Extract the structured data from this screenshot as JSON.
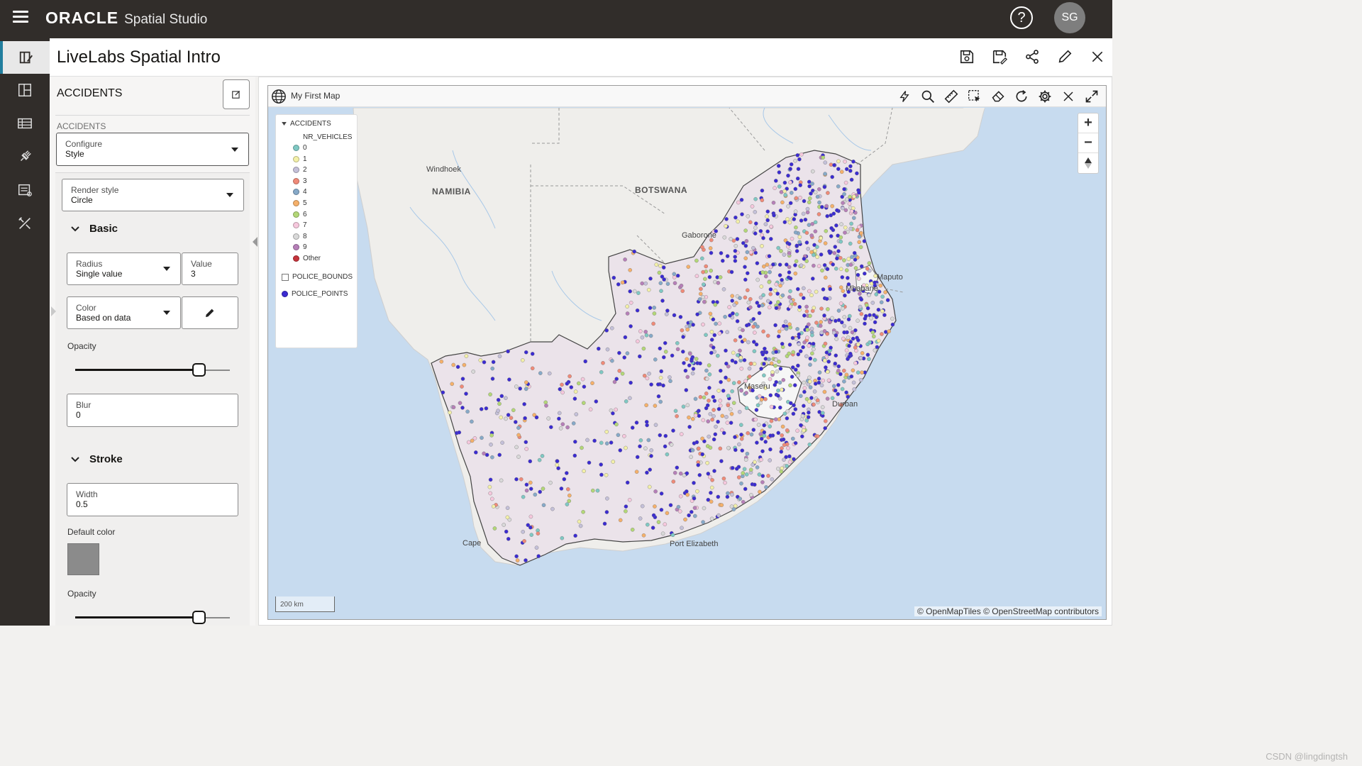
{
  "topbar": {
    "brand_oracle": "ORACLE",
    "brand_product": "Spatial Studio",
    "help_label": "?",
    "avatar_initials": "SG"
  },
  "header": {
    "title": "LiveLabs Spatial Intro"
  },
  "panel": {
    "title": "ACCIDENTS",
    "layer_label": "ACCIDENTS",
    "configure": {
      "label": "Configure",
      "value": "Style"
    },
    "render_style": {
      "label": "Render style",
      "value": "Circle"
    },
    "basic_section": "Basic",
    "radius": {
      "label": "Radius",
      "value": "Single value"
    },
    "radius_value": {
      "label": "Value",
      "value": "3"
    },
    "color": {
      "label": "Color",
      "value": "Based on data"
    },
    "opacity_label": "Opacity",
    "opacity_value": 0.8,
    "blur": {
      "label": "Blur",
      "value": "0"
    },
    "stroke_section": "Stroke",
    "stroke_width": {
      "label": "Width",
      "value": "0.5"
    },
    "default_color_label": "Default color",
    "default_color": "#8b8b8b",
    "stroke_opacity_label": "Opacity",
    "stroke_opacity_value": 0.8
  },
  "map": {
    "title": "My First Map",
    "legend": {
      "layer": "ACCIDENTS",
      "field": "NR_VEHICLES",
      "items": [
        {
          "label": "0",
          "color": "#7fc8c3"
        },
        {
          "label": "1",
          "color": "#f3f0a8"
        },
        {
          "label": "2",
          "color": "#c4c0d9"
        },
        {
          "label": "3",
          "color": "#ef8a78"
        },
        {
          "label": "4",
          "color": "#86a9c8"
        },
        {
          "label": "5",
          "color": "#f5b06a"
        },
        {
          "label": "6",
          "color": "#b3d777"
        },
        {
          "label": "7",
          "color": "#f6c8dd"
        },
        {
          "label": "8",
          "color": "#d9d9d9"
        },
        {
          "label": "9",
          "color": "#b67fb8"
        },
        {
          "label": "Other",
          "color": "#c5333b"
        }
      ],
      "police_bounds": "POLICE_BOUNDS",
      "police_points": "POLICE_POINTS",
      "police_points_color": "#3b2bd1"
    },
    "labels": {
      "windhoek": "Windhoek",
      "namibia": "NAMIBIA",
      "botswana": "BOTSWANA",
      "gaborone": "Gaborone",
      "maputo": "Maputo",
      "mbabane": "Mbabane",
      "maseru": "Maseru",
      "durban": "Durban",
      "cape_town": "Cape",
      "port_elizabeth": "Port Elizabeth"
    },
    "scale": "200 km",
    "attribution": "© OpenMapTiles  © OpenStreetMap contributors",
    "watermark": "CSDN @lingdingtsh"
  }
}
